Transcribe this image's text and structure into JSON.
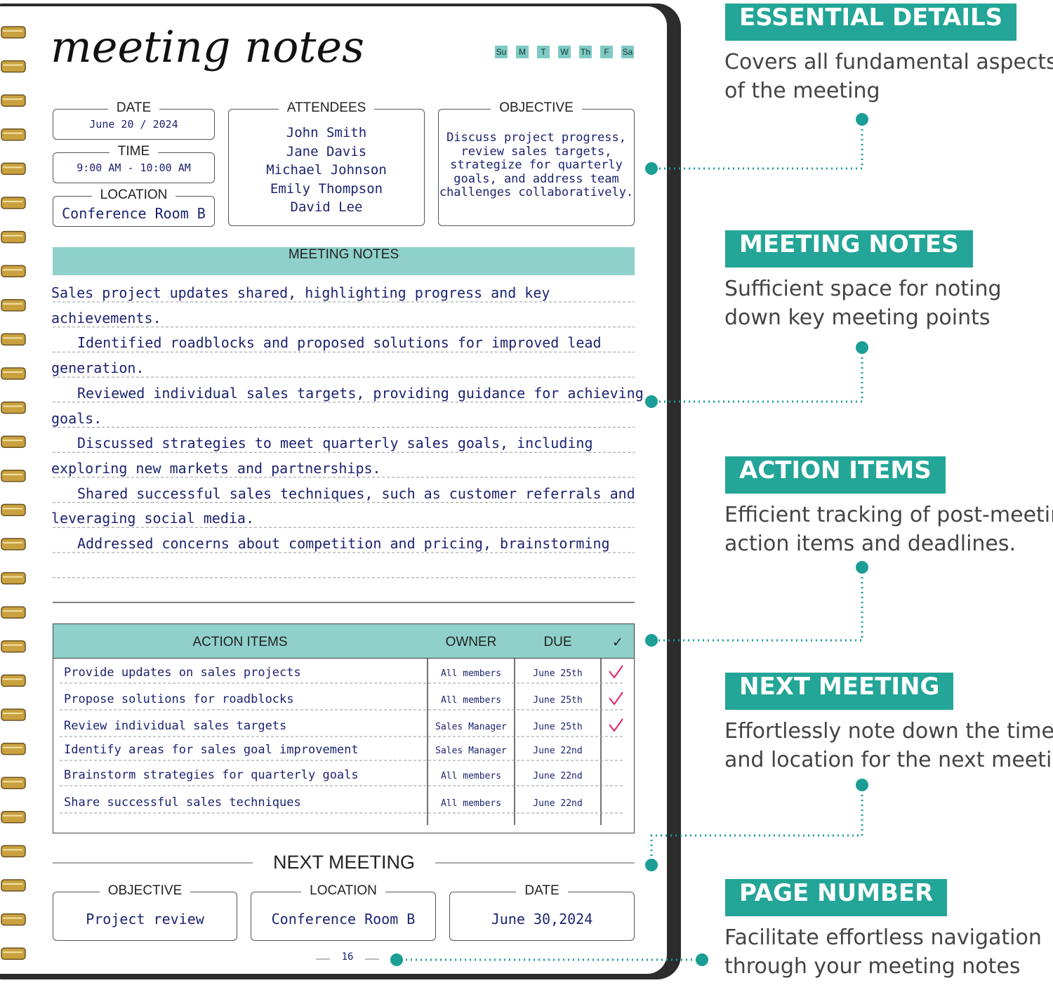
{
  "header": {
    "title": "meeting notes",
    "days": [
      "Su",
      "M",
      "T",
      "W",
      "Th",
      "F",
      "Sa"
    ]
  },
  "details": {
    "date": {
      "label": "DATE",
      "value": "June 20 / 2024"
    },
    "time": {
      "label": "TIME",
      "value": "9:00 AM - 10:00 AM"
    },
    "location": {
      "label": "LOCATION",
      "value": "Conference Room B"
    }
  },
  "attendees": {
    "label": "ATTENDEES",
    "names": [
      "John Smith",
      "Jane Davis",
      "Michael Johnson",
      "Emily Thompson",
      "David Lee"
    ]
  },
  "objective": {
    "label": "OBJECTIVE",
    "lines": [
      "Discuss project progress,",
      "review sales targets,",
      "strategize for quarterly",
      "goals, and address team",
      "challenges collaboratively."
    ]
  },
  "meeting_notes": {
    "label": "MEETING NOTES",
    "lines": [
      "Sales project updates shared, highlighting progress and key",
      "achievements.",
      "Identified roadblocks and proposed solutions for improved lead",
      "generation.",
      "Reviewed individual sales targets, providing guidance for achieving",
      "goals.",
      "Discussed strategies to meet quarterly sales goals, including",
      "exploring new markets and partnerships.",
      "Shared successful sales techniques, such as customer referrals and",
      "leveraging social media.",
      "Addressed concerns about competition and pricing, brainstorming"
    ]
  },
  "action_items": {
    "columns": [
      "ACTION ITEMS",
      "OWNER",
      "DUE",
      "✓"
    ],
    "rows": [
      {
        "task": "Provide updates on sales projects",
        "owner": "All members",
        "due": "June 25th",
        "done": true
      },
      {
        "task": "Propose solutions for roadblocks",
        "owner": "All members",
        "due": "June 25th",
        "done": true
      },
      {
        "task": "Review individual sales targets",
        "owner": "Sales Manager",
        "due": "June 25th",
        "done": true
      },
      {
        "task": "Identify areas for sales goal improvement",
        "owner": "Sales Manager",
        "due": "June 22nd",
        "done": false
      },
      {
        "task": "Brainstorm strategies for quarterly goals",
        "owner": "All members",
        "due": "June 22nd",
        "done": false
      },
      {
        "task": "Share successful sales techniques",
        "owner": "All members",
        "due": "June 22nd",
        "done": false
      }
    ]
  },
  "next_meeting": {
    "title": "NEXT MEETING",
    "fields": [
      {
        "label": "OBJECTIVE",
        "value": "Project review"
      },
      {
        "label": "LOCATION",
        "value": "Conference Room B"
      },
      {
        "label": "DATE",
        "value": "June 30,2024"
      }
    ]
  },
  "page_number": "16",
  "callouts": [
    {
      "title": "ESSENTIAL DETAILS",
      "lines": [
        "Covers all fundamental aspects",
        "of the meeting"
      ]
    },
    {
      "title": "MEETING NOTES",
      "lines": [
        "Sufficient space for noting",
        "down key meeting points"
      ]
    },
    {
      "title": "ACTION ITEMS",
      "lines": [
        "Efficient tracking of post-meeting",
        "action items and deadlines."
      ]
    },
    {
      "title": "NEXT MEETING",
      "lines": [
        "Effortlessly note down the time",
        "and location for the next meeting"
      ]
    },
    {
      "title": "PAGE NUMBER",
      "lines": [
        "Facilitate effortless navigation",
        "through your meeting notes"
      ]
    }
  ]
}
